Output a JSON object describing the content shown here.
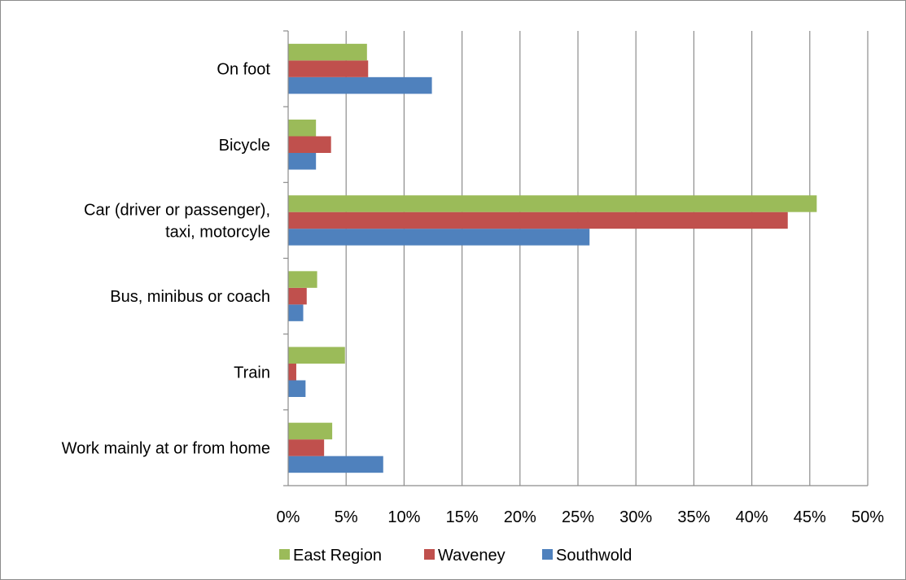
{
  "chart_data": {
    "type": "bar",
    "orientation": "horizontal",
    "categories": [
      "Work mainly at or from home",
      "Train",
      "Bus, minibus or coach",
      [
        "Car (driver or passenger),",
        "taxi, motorcyle"
      ],
      "Bicycle",
      "On foot"
    ],
    "series": [
      {
        "name": "Southwold",
        "color": "#4f81bd",
        "values": [
          8.2,
          1.5,
          1.3,
          26.0,
          2.4,
          12.4
        ]
      },
      {
        "name": "Waveney",
        "color": "#c0504d",
        "values": [
          3.1,
          0.7,
          1.6,
          43.1,
          3.7,
          6.9
        ]
      },
      {
        "name": "East Region",
        "color": "#9bbb59",
        "values": [
          3.8,
          4.9,
          2.5,
          45.6,
          2.4,
          6.8
        ]
      }
    ],
    "x_ticks": [
      "0%",
      "5%",
      "10%",
      "15%",
      "20%",
      "25%",
      "30%",
      "35%",
      "40%",
      "45%",
      "50%"
    ],
    "xlim": [
      0,
      50
    ],
    "x_unit": "percent",
    "grid": "vertical major gridlines",
    "legend_position": "bottom",
    "legend_order": [
      "East Region",
      "Waveney",
      "Southwold"
    ],
    "title": "",
    "xlabel": "",
    "ylabel": ""
  }
}
